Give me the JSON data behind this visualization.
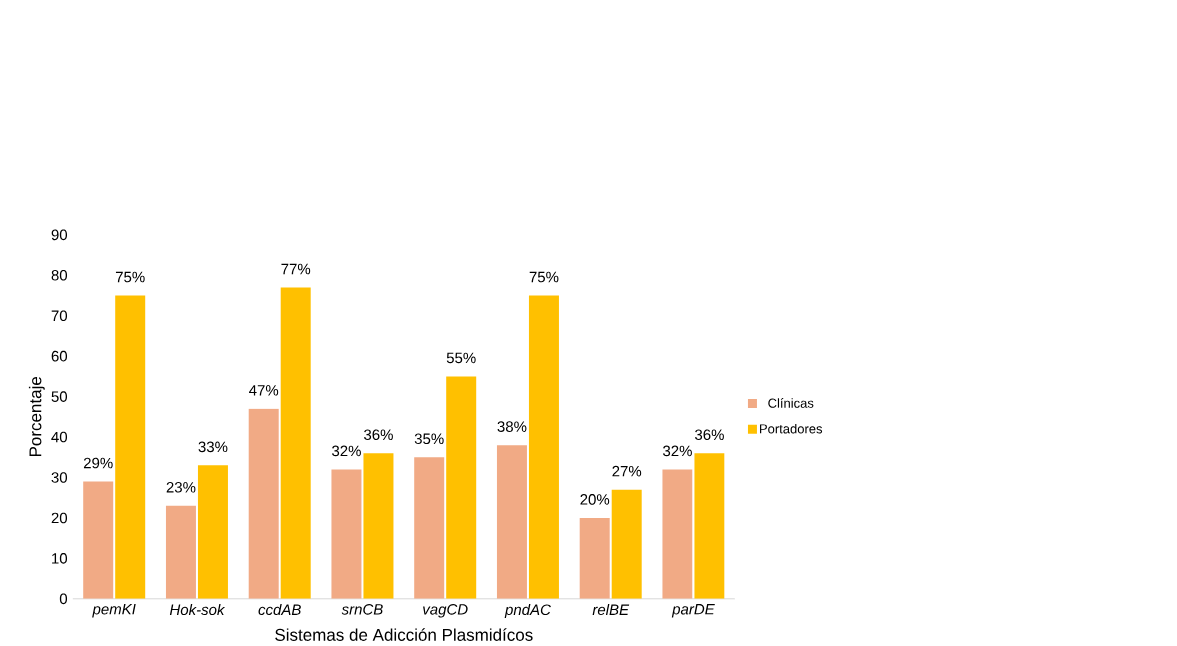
{
  "chart_data": {
    "type": "bar",
    "xlabel": "Sistemas de Adicción Plasmidícos",
    "ylabel": "Porcentaje",
    "categories": [
      "pemKI",
      "Hok-sok",
      "ccdAB",
      "srnCB",
      "vagCD",
      "pndAC",
      "relBE",
      "parDE"
    ],
    "series": [
      {
        "name": "Clínicas",
        "color": "#f1aa85",
        "values": [
          29,
          23,
          47,
          32,
          35,
          38,
          20,
          32
        ],
        "value_labels": [
          "29%",
          "23%",
          "47%",
          "32%",
          "35%",
          "38%",
          "20%",
          "32%"
        ]
      },
      {
        "name": "Portadores",
        "color": "#ffc000",
        "values": [
          75,
          33,
          77,
          36,
          55,
          75,
          27,
          36
        ],
        "value_labels": [
          "75%",
          "33%",
          "77%",
          "36%",
          "55%",
          "75%",
          "27%",
          "36%"
        ]
      }
    ],
    "ylim": [
      0,
      90
    ],
    "yticks": [
      0,
      10,
      20,
      30,
      40,
      50,
      60,
      70,
      80,
      90
    ],
    "legend": "right"
  }
}
